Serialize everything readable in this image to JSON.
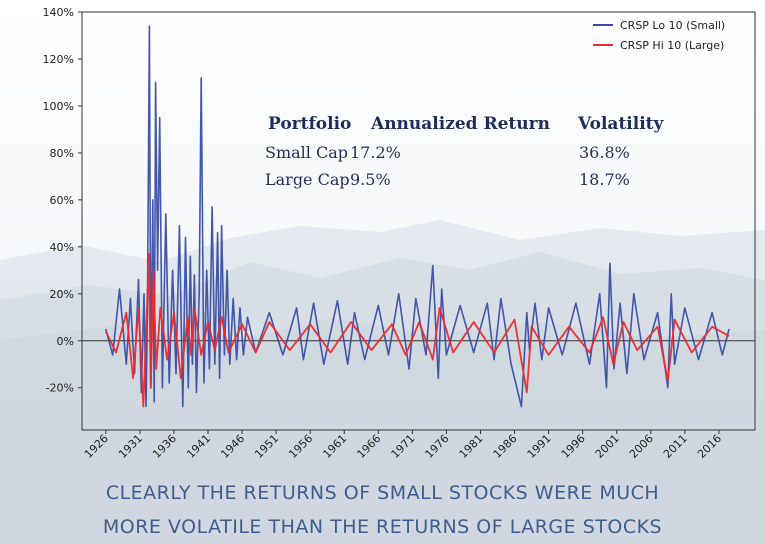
{
  "chart_data": {
    "type": "line",
    "title": "",
    "xlabel": "",
    "ylabel": "",
    "ylim": [
      -0.38,
      1.4
    ],
    "xlim": [
      1922.5,
      2021.3
    ],
    "y_ticks": [
      -0.2,
      0,
      0.2,
      0.4,
      0.6,
      0.8,
      1.0,
      1.2,
      1.4
    ],
    "y_tick_labels": [
      "-20%",
      "0%",
      "20%",
      "40%",
      "60%",
      "80%",
      "100%",
      "120%",
      "140%"
    ],
    "x_ticks": [
      1926,
      1931,
      1936,
      1941,
      1946,
      1951,
      1956,
      1961,
      1966,
      1971,
      1976,
      1981,
      1986,
      1991,
      1996,
      2001,
      2006,
      2011,
      2016
    ],
    "x_tick_labels": [
      "1926",
      "1931",
      "1936",
      "1941",
      "1946",
      "1951",
      "1956",
      "1961",
      "1966",
      "1971",
      "1976",
      "1981",
      "1986",
      "1991",
      "1996",
      "2001",
      "2006",
      "2011",
      "2016"
    ],
    "grid": false,
    "legend_position": "top-right",
    "series": [
      {
        "name": "CRSP Lo 10 (Small)",
        "color": "#3a4ea8",
        "x": [
          1926.0,
          1927.0,
          1928.0,
          1929.0,
          1929.6,
          1930.2,
          1930.8,
          1931.2,
          1931.6,
          1931.9,
          1932.1,
          1932.4,
          1932.6,
          1932.9,
          1933.1,
          1933.3,
          1933.6,
          1933.9,
          1934.3,
          1934.8,
          1935.3,
          1935.8,
          1936.3,
          1936.8,
          1937.3,
          1937.7,
          1938.1,
          1938.4,
          1938.7,
          1939.0,
          1939.3,
          1939.7,
          1940.0,
          1940.4,
          1940.8,
          1941.2,
          1941.6,
          1942.0,
          1942.4,
          1942.7,
          1943.0,
          1943.4,
          1943.8,
          1944.2,
          1944.7,
          1945.2,
          1945.7,
          1946.2,
          1946.8,
          1948.0,
          1950.0,
          1952.0,
          1954.0,
          1955.0,
          1956.5,
          1958.0,
          1960.0,
          1961.5,
          1962.5,
          1964.0,
          1966.0,
          1967.5,
          1969.0,
          1970.5,
          1971.5,
          1973.0,
          1974.0,
          1974.8,
          1975.3,
          1976.0,
          1978.0,
          1980.0,
          1982.0,
          1983.0,
          1984.0,
          1985.5,
          1987.0,
          1987.8,
          1988.2,
          1989.0,
          1990.0,
          1991.0,
          1993.0,
          1995.0,
          1997.0,
          1998.5,
          1999.5,
          2000.0,
          2000.6,
          2001.5,
          2002.5,
          2003.5,
          2005.0,
          2007.0,
          2008.5,
          2009.0,
          2009.5,
          2011.0,
          2013.0,
          2015.0,
          2016.5,
          2017.5
        ],
        "values": [
          0.05,
          -0.06,
          0.22,
          -0.1,
          0.18,
          -0.14,
          0.26,
          -0.22,
          0.2,
          -0.28,
          0.12,
          1.34,
          -0.2,
          0.6,
          -0.26,
          1.1,
          0.3,
          0.95,
          -0.2,
          0.54,
          -0.18,
          0.3,
          -0.14,
          0.49,
          -0.28,
          0.44,
          -0.2,
          0.36,
          -0.1,
          0.28,
          -0.22,
          0.2,
          1.12,
          -0.18,
          0.3,
          -0.12,
          0.57,
          -0.1,
          0.46,
          -0.16,
          0.49,
          -0.06,
          0.3,
          -0.1,
          0.18,
          -0.08,
          0.14,
          -0.06,
          0.1,
          -0.05,
          0.12,
          -0.06,
          0.14,
          -0.08,
          0.16,
          -0.1,
          0.17,
          -0.1,
          0.12,
          -0.08,
          0.15,
          -0.06,
          0.2,
          -0.12,
          0.18,
          -0.06,
          0.32,
          -0.16,
          0.22,
          -0.06,
          0.15,
          -0.05,
          0.16,
          -0.08,
          0.18,
          -0.1,
          -0.28,
          0.12,
          -0.04,
          0.16,
          -0.08,
          0.14,
          -0.06,
          0.16,
          -0.1,
          0.2,
          -0.2,
          0.33,
          -0.12,
          0.16,
          -0.14,
          0.2,
          -0.08,
          0.12,
          -0.2,
          0.2,
          -0.1,
          0.14,
          -0.08,
          0.12,
          -0.06,
          0.05
        ]
      },
      {
        "name": "CRSP Hi 10 (Large)",
        "color": "#ee2a2a",
        "x": [
          1926.0,
          1927.5,
          1929.0,
          1930.0,
          1930.8,
          1931.5,
          1932.0,
          1932.3,
          1932.6,
          1933.0,
          1933.4,
          1934.0,
          1935.0,
          1936.0,
          1937.0,
          1938.0,
          1938.5,
          1939.0,
          1940.0,
          1941.0,
          1942.0,
          1943.0,
          1944.0,
          1946.0,
          1948.0,
          1950.0,
          1953.0,
          1956.0,
          1959.0,
          1962.0,
          1965.0,
          1968.0,
          1970.0,
          1972.0,
          1974.0,
          1975.0,
          1977.0,
          1980.0,
          1983.0,
          1986.0,
          1987.8,
          1988.5,
          1991.0,
          1994.0,
          1997.0,
          1999.0,
          2000.5,
          2002.0,
          2004.0,
          2007.0,
          2008.5,
          2009.5,
          2012.0,
          2015.0,
          2017.5
        ],
        "values": [
          0.04,
          -0.05,
          0.12,
          -0.16,
          0.14,
          -0.28,
          0.1,
          0.37,
          -0.2,
          0.3,
          -0.12,
          0.14,
          -0.08,
          0.12,
          -0.16,
          0.1,
          -0.06,
          0.14,
          -0.06,
          0.08,
          -0.04,
          0.1,
          -0.05,
          0.07,
          -0.05,
          0.08,
          -0.04,
          0.07,
          -0.05,
          0.08,
          -0.04,
          0.07,
          -0.06,
          0.08,
          -0.08,
          0.14,
          -0.05,
          0.08,
          -0.05,
          0.09,
          -0.22,
          0.06,
          -0.06,
          0.06,
          -0.05,
          0.1,
          -0.1,
          0.08,
          -0.04,
          0.06,
          -0.17,
          0.09,
          -0.05,
          0.06,
          0.02
        ]
      }
    ]
  },
  "stats_table": {
    "headers": [
      "Portfolio",
      "Annualized Return",
      "Volatility"
    ],
    "rows": [
      [
        "Small Cap",
        "17.2%",
        "36.8%"
      ],
      [
        "Large Cap",
        "9.5%",
        "18.7%"
      ]
    ]
  },
  "caption": {
    "line1": "CLEARLY THE RETURNS OF SMALL STOCKS WERE MUCH",
    "line2": "MORE VOLATILE THAN THE RETURNS OF LARGE STOCKS"
  }
}
